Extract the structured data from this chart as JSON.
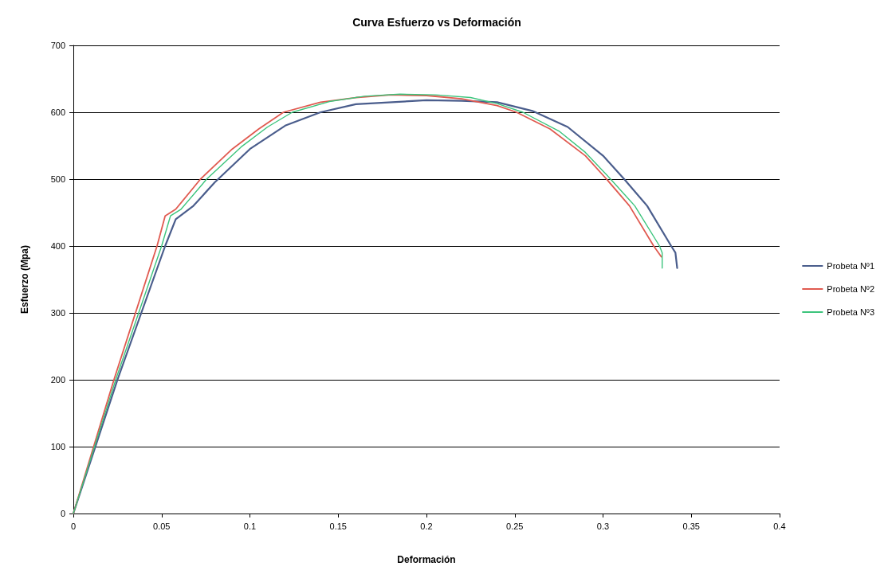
{
  "chart_data": {
    "type": "line",
    "title": "Curva Esfuerzo vs Deformación",
    "xlabel": "Deformación",
    "ylabel": "Esfuerzo (Mpa)",
    "xlim": [
      0,
      0.4
    ],
    "xticks": [
      0,
      0.05,
      0.1,
      0.15,
      0.2,
      0.25,
      0.3,
      0.35,
      0.4
    ],
    "ylim": [
      0,
      700
    ],
    "yticks": [
      0,
      100,
      200,
      300,
      400,
      500,
      600,
      700
    ],
    "grid": "y",
    "legend": "right",
    "marker": "none",
    "line_style": "solid",
    "series": [
      {
        "name": "Probeta Nº1",
        "color": "#4a5d8c",
        "x": [
          0,
          0.025,
          0.052,
          0.058,
          0.068,
          0.08,
          0.1,
          0.12,
          0.14,
          0.16,
          0.2,
          0.22,
          0.24,
          0.26,
          0.28,
          0.3,
          0.312,
          0.325,
          0.3386,
          0.341,
          0.342
        ],
        "values": [
          0,
          200,
          400,
          440,
          460,
          495,
          545,
          580,
          600,
          612,
          618,
          617,
          615,
          602,
          578,
          535,
          500,
          460,
          400,
          390,
          367
        ]
      },
      {
        "name": "Probeta Nº2",
        "color": "#e05a50",
        "x": [
          0,
          0.023,
          0.0474,
          0.052,
          0.058,
          0.072,
          0.09,
          0.105,
          0.119,
          0.14,
          0.16,
          0.18,
          0.2,
          0.22,
          0.24,
          0.251,
          0.27,
          0.29,
          0.302,
          0.315,
          0.3287,
          0.333
        ],
        "values": [
          0,
          200,
          400,
          445,
          455,
          500,
          545,
          575,
          600,
          615,
          622,
          626,
          625,
          620,
          610,
          600,
          575,
          535,
          500,
          460,
          400,
          384
        ]
      },
      {
        "name": "Probeta Nº3",
        "color": "#3cc47c",
        "x": [
          0,
          0.024,
          0.05,
          0.055,
          0.061,
          0.0755,
          0.095,
          0.11,
          0.124,
          0.145,
          0.165,
          0.185,
          0.205,
          0.225,
          0.24,
          0.2546,
          0.275,
          0.29,
          0.3043,
          0.318,
          0.332,
          0.3335,
          0.3335
        ],
        "values": [
          0,
          200,
          400,
          445,
          455,
          500,
          548,
          578,
          600,
          616,
          624,
          627,
          626,
          622,
          613,
          600,
          572,
          540,
          500,
          460,
          400,
          390,
          367
        ]
      }
    ]
  }
}
